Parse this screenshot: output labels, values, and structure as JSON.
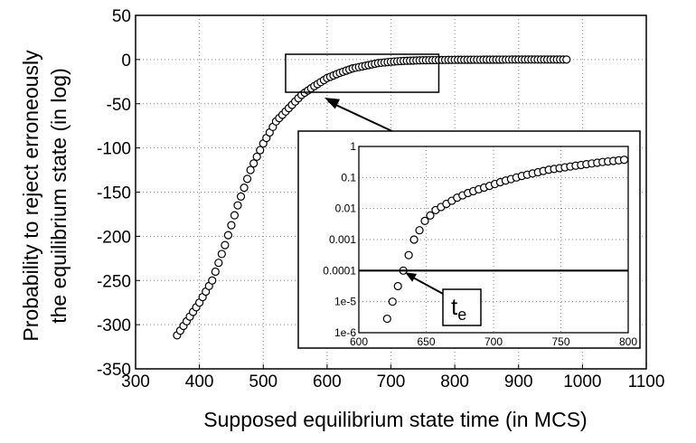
{
  "chart_data": [
    {
      "id": "main",
      "type": "scatter",
      "xlabel": "Supposed equilibrium state time (in MCS)",
      "ylabel_lines": [
        "Probability to reject erroneously",
        "the equilibrium state (in log)"
      ],
      "xlim": [
        300,
        1100
      ],
      "ylim": [
        -350,
        50
      ],
      "xticks": [
        300,
        400,
        500,
        600,
        700,
        800,
        900,
        1000,
        1100
      ],
      "yticks": [
        -350,
        -300,
        -250,
        -200,
        -150,
        -100,
        -50,
        0,
        50
      ],
      "grid": "dotted",
      "marker": "open-circle",
      "x_range_points": [
        365,
        975,
        5
      ],
      "curve_keypoints": [
        [
          365,
          -312
        ],
        [
          400,
          -275
        ],
        [
          420,
          -250
        ],
        [
          440,
          -210
        ],
        [
          460,
          -165
        ],
        [
          480,
          -125
        ],
        [
          500,
          -95
        ],
        [
          520,
          -70
        ],
        [
          540,
          -55
        ],
        [
          560,
          -40
        ],
        [
          580,
          -30
        ],
        [
          600,
          -21
        ],
        [
          620,
          -15
        ],
        [
          640,
          -10
        ],
        [
          660,
          -7
        ],
        [
          680,
          -4
        ],
        [
          700,
          -2.5
        ],
        [
          720,
          -1.5
        ],
        [
          750,
          -0.8
        ],
        [
          800,
          -0.3
        ],
        [
          900,
          0
        ],
        [
          975,
          0
        ]
      ],
      "zoom_box": {
        "x": [
          535,
          775
        ],
        "y": [
          -37,
          6
        ]
      }
    },
    {
      "id": "inset",
      "type": "scatter",
      "yscale": "log",
      "xlim": [
        600,
        800
      ],
      "ylim": [
        1e-06,
        1
      ],
      "xticks": [
        600,
        650,
        700,
        750,
        800
      ],
      "yticks": [
        "1e-6",
        "1e-5",
        "0.0001",
        "0.001",
        "0.01",
        "0.1",
        "1"
      ],
      "ytick_values": [
        1e-06,
        1e-05,
        0.0001,
        0.001,
        0.01,
        0.1,
        1
      ],
      "grid": "dotted",
      "marker": "open-circle",
      "threshold": 0.0001,
      "annotation": {
        "label_main": "t",
        "label_sub": "e",
        "point": [
          633,
          0.0001
        ]
      },
      "x_range_points": [
        617,
        797,
        4
      ],
      "curve_keypoints": [
        [
          617,
          -6.1
        ],
        [
          625,
          -5.0
        ],
        [
          633,
          -4.0
        ],
        [
          641,
          -3.0
        ],
        [
          649,
          -2.4
        ],
        [
          657,
          -2.05
        ],
        [
          665,
          -1.85
        ],
        [
          673,
          -1.65
        ],
        [
          681,
          -1.5
        ],
        [
          689,
          -1.38
        ],
        [
          697,
          -1.27
        ],
        [
          705,
          -1.15
        ],
        [
          721,
          -0.95
        ],
        [
          741,
          -0.75
        ],
        [
          761,
          -0.62
        ],
        [
          781,
          -0.5
        ],
        [
          797,
          -0.43
        ]
      ]
    }
  ]
}
